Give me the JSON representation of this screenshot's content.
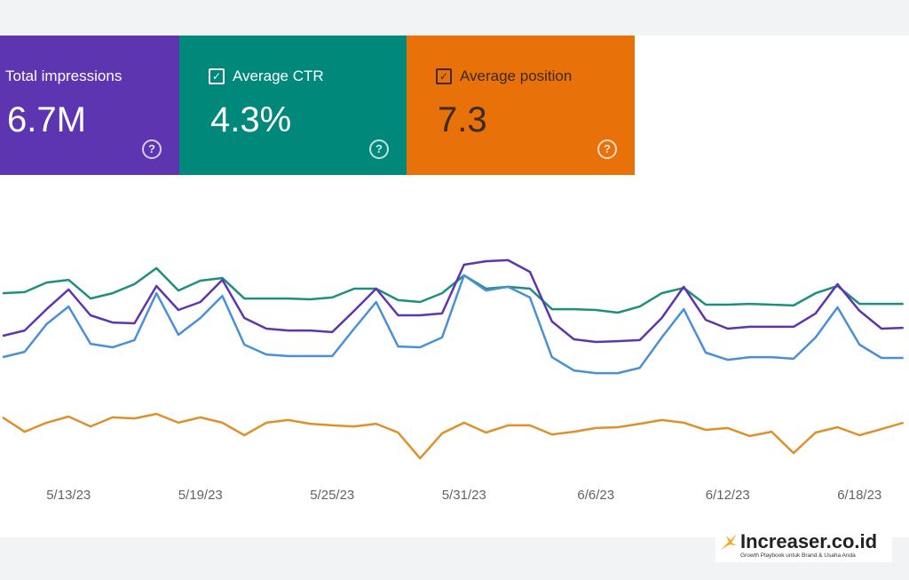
{
  "cards": [
    {
      "label": "Total impressions",
      "value": "6.7M",
      "color": "#5e35b1",
      "checked": false
    },
    {
      "label": "Average CTR",
      "value": "4.3%",
      "color": "#00897b",
      "checked": true
    },
    {
      "label": "Average position",
      "value": "7.3",
      "color": "#e8710a",
      "checked": true
    }
  ],
  "chart_data": {
    "type": "line",
    "x": [
      null,
      null,
      null,
      "5/13/23",
      null,
      null,
      null,
      null,
      null,
      "5/19/23",
      null,
      null,
      null,
      null,
      null,
      "5/25/23",
      null,
      null,
      null,
      null,
      null,
      "5/31/23",
      null,
      null,
      null,
      null,
      null,
      "6/6/23",
      null,
      null,
      null,
      null,
      null,
      "6/12/23",
      null,
      null,
      null,
      null,
      null,
      "6/18/23",
      null,
      null
    ],
    "ylim": [
      0,
      100
    ],
    "series": [
      {
        "color": "#1e8e7e",
        "values": [
          73.3,
          73.7,
          77.3,
          78.3,
          71.3,
          73.3,
          76.7,
          82.7,
          74.3,
          78,
          79,
          71.3,
          71.3,
          71.3,
          71,
          71.7,
          75,
          75,
          70.7,
          70,
          73.3,
          80,
          75,
          75.7,
          75,
          67.3,
          67.3,
          67,
          66,
          68.3,
          73.3,
          75.3,
          69,
          69,
          69.3,
          69,
          68.7,
          73.3,
          76,
          69.3,
          69.3,
          69.3
        ]
      },
      {
        "color": "#5e35b1",
        "values": [
          57.3,
          59.3,
          67.3,
          74.7,
          65,
          62.3,
          62,
          76,
          67,
          70,
          78.3,
          64,
          60,
          59.3,
          59.3,
          58.7,
          66.7,
          75,
          65,
          65,
          65.7,
          84,
          85.3,
          85.7,
          81.3,
          62.7,
          56,
          55,
          55.3,
          55.7,
          64,
          75.7,
          63.3,
          60,
          60.7,
          60.7,
          60.7,
          65.7,
          76.7,
          66.7,
          60,
          60.3
        ]
      },
      {
        "color": "#4a90d9",
        "values": [
          49.3,
          51.3,
          61.7,
          68.3,
          54.3,
          53,
          55.7,
          73.3,
          57.7,
          64,
          72.3,
          54,
          50.3,
          49.7,
          49.7,
          49.7,
          60,
          70,
          53.3,
          53,
          56.7,
          80,
          74.3,
          75.7,
          71.7,
          49.3,
          44.3,
          43.3,
          43.3,
          45.3,
          56.7,
          67.3,
          51,
          48.3,
          49.3,
          49.3,
          48.7,
          56.7,
          68,
          54,
          49,
          49
        ]
      },
      {
        "color": "#e0902a",
        "values": [
          26.7,
          21.3,
          24.7,
          27,
          23.3,
          26.7,
          26.3,
          28,
          24.7,
          26.7,
          24.7,
          20,
          24.7,
          25.7,
          24.3,
          23.7,
          23.3,
          24.3,
          21,
          11.3,
          20.7,
          24.7,
          21,
          23.7,
          23.7,
          20.3,
          21.3,
          22.7,
          23,
          24.3,
          25.7,
          24.7,
          22,
          22.7,
          19.7,
          21.3,
          13.3,
          21,
          23,
          20,
          22.3,
          24.7
        ]
      }
    ]
  },
  "watermark": {
    "brand": "Increaser.co.id",
    "tagline": "Growth Playbook untuk Brand & Usaha Anda"
  }
}
